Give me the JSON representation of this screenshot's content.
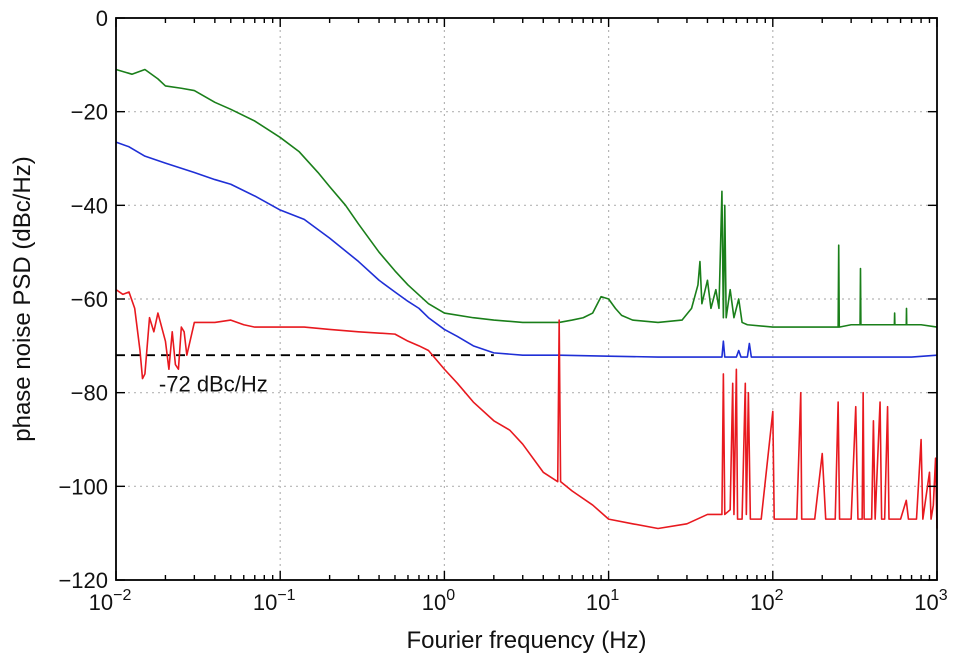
{
  "chart_data": {
    "type": "line",
    "xscale": "log",
    "xlabel": "Fourier frequency (Hz)",
    "ylabel": "phase noise PSD (dBc/Hz)",
    "xlim": [
      0.01,
      1000
    ],
    "ylim": [
      -120,
      0
    ],
    "grid": true,
    "x_ticks": [
      {
        "value": 0.01,
        "base": "10",
        "exp": "−2"
      },
      {
        "value": 0.1,
        "base": "10",
        "exp": "−1"
      },
      {
        "value": 1,
        "base": "10",
        "exp": "0"
      },
      {
        "value": 10,
        "base": "10",
        "exp": "1"
      },
      {
        "value": 100,
        "base": "10",
        "exp": "2"
      },
      {
        "value": 1000,
        "base": "10",
        "exp": "3"
      }
    ],
    "y_ticks": [
      {
        "value": 0,
        "label": "0"
      },
      {
        "value": -20,
        "label": "−20"
      },
      {
        "value": -40,
        "label": "−40"
      },
      {
        "value": -60,
        "label": "−60"
      },
      {
        "value": -80,
        "label": "−80"
      },
      {
        "value": -100,
        "label": "−100"
      },
      {
        "value": -120,
        "label": "−120"
      }
    ],
    "reference_line": {
      "y": -72,
      "x_range": [
        0.01,
        2.0
      ],
      "style": "dashed",
      "color": "#000000"
    },
    "annotations": [
      {
        "text": "-72 dBc/Hz",
        "x": 0.015,
        "y": -78
      }
    ],
    "series": [
      {
        "color": "#1a7f1a",
        "points": [
          [
            0.01,
            -11
          ],
          [
            0.0125,
            -12
          ],
          [
            0.015,
            -11
          ],
          [
            0.018,
            -13
          ],
          [
            0.02,
            -14.5
          ],
          [
            0.025,
            -15
          ],
          [
            0.03,
            -15.5
          ],
          [
            0.04,
            -18
          ],
          [
            0.05,
            -19.5
          ],
          [
            0.07,
            -22
          ],
          [
            0.1,
            -25.5
          ],
          [
            0.13,
            -28.5
          ],
          [
            0.17,
            -33
          ],
          [
            0.2,
            -36
          ],
          [
            0.25,
            -40
          ],
          [
            0.3,
            -44
          ],
          [
            0.4,
            -50
          ],
          [
            0.5,
            -54
          ],
          [
            0.6,
            -57
          ],
          [
            0.8,
            -61
          ],
          [
            1,
            -63
          ],
          [
            1.5,
            -64
          ],
          [
            2,
            -64.5
          ],
          [
            3,
            -65
          ],
          [
            4,
            -65
          ],
          [
            5,
            -65
          ],
          [
            6,
            -64.5
          ],
          [
            7,
            -64
          ],
          [
            8,
            -63
          ],
          [
            9,
            -59.5
          ],
          [
            10,
            -60
          ],
          [
            11,
            -62
          ],
          [
            12,
            -63.5
          ],
          [
            14,
            -64.5
          ],
          [
            20,
            -65
          ],
          [
            28,
            -64.5
          ],
          [
            32,
            -62
          ],
          [
            35,
            -57
          ],
          [
            36,
            -52
          ],
          [
            37,
            -61
          ],
          [
            40,
            -56
          ],
          [
            42,
            -62
          ],
          [
            45,
            -58
          ],
          [
            47,
            -62
          ],
          [
            49,
            -37
          ],
          [
            50,
            -64
          ],
          [
            51,
            -40
          ],
          [
            52,
            -64
          ],
          [
            55,
            -58
          ],
          [
            58,
            -64
          ],
          [
            62,
            -60
          ],
          [
            65,
            -65
          ],
          [
            70,
            -65.5
          ],
          [
            100,
            -66
          ],
          [
            200,
            -66
          ],
          [
            250,
            -66
          ],
          [
            252,
            -48.5
          ],
          [
            254,
            -66
          ],
          [
            300,
            -65.5
          ],
          [
            340,
            -65.5
          ],
          [
            342,
            -53.5
          ],
          [
            344,
            -65.5
          ],
          [
            400,
            -65.5
          ],
          [
            500,
            -65.5
          ],
          [
            550,
            -65.5
          ],
          [
            552,
            -63
          ],
          [
            554,
            -65.5
          ],
          [
            650,
            -65.5
          ],
          [
            652,
            -62
          ],
          [
            654,
            -65.5
          ],
          [
            800,
            -65.5
          ],
          [
            1000,
            -66
          ]
        ]
      },
      {
        "color": "#1f2fd6",
        "points": [
          [
            0.01,
            -26.5
          ],
          [
            0.012,
            -27.5
          ],
          [
            0.015,
            -29.5
          ],
          [
            0.02,
            -31
          ],
          [
            0.03,
            -33
          ],
          [
            0.04,
            -34.5
          ],
          [
            0.05,
            -35.5
          ],
          [
            0.07,
            -38
          ],
          [
            0.1,
            -41
          ],
          [
            0.14,
            -43
          ],
          [
            0.2,
            -47
          ],
          [
            0.3,
            -52
          ],
          [
            0.4,
            -56
          ],
          [
            0.5,
            -58.5
          ],
          [
            0.6,
            -60.5
          ],
          [
            0.7,
            -62
          ],
          [
            0.8,
            -64
          ],
          [
            1,
            -66.5
          ],
          [
            1.2,
            -68
          ],
          [
            1.5,
            -70
          ],
          [
            2,
            -71.5
          ],
          [
            3,
            -72
          ],
          [
            5,
            -72
          ],
          [
            10,
            -72.2
          ],
          [
            20,
            -72.4
          ],
          [
            30,
            -72.4
          ],
          [
            49,
            -72.4
          ],
          [
            50,
            -69
          ],
          [
            51,
            -72.4
          ],
          [
            60,
            -72.4
          ],
          [
            62,
            -71
          ],
          [
            64,
            -72.4
          ],
          [
            70,
            -72.4
          ],
          [
            72,
            -69.5
          ],
          [
            74,
            -72.4
          ],
          [
            100,
            -72.4
          ],
          [
            300,
            -72.4
          ],
          [
            500,
            -72.4
          ],
          [
            700,
            -72.4
          ],
          [
            1000,
            -72
          ]
        ]
      },
      {
        "color": "#e8191f",
        "points": [
          [
            0.01,
            -58
          ],
          [
            0.011,
            -59
          ],
          [
            0.012,
            -58.5
          ],
          [
            0.013,
            -62
          ],
          [
            0.014,
            -71
          ],
          [
            0.0145,
            -77
          ],
          [
            0.015,
            -76
          ],
          [
            0.016,
            -64
          ],
          [
            0.017,
            -67
          ],
          [
            0.018,
            -63
          ],
          [
            0.02,
            -69
          ],
          [
            0.021,
            -75
          ],
          [
            0.022,
            -67
          ],
          [
            0.023,
            -74
          ],
          [
            0.024,
            -75
          ],
          [
            0.025,
            -66
          ],
          [
            0.026,
            -67
          ],
          [
            0.027,
            -72
          ],
          [
            0.03,
            -65
          ],
          [
            0.04,
            -65
          ],
          [
            0.05,
            -64.5
          ],
          [
            0.06,
            -65.5
          ],
          [
            0.07,
            -66
          ],
          [
            0.1,
            -66
          ],
          [
            0.14,
            -66
          ],
          [
            0.2,
            -66.5
          ],
          [
            0.3,
            -67
          ],
          [
            0.5,
            -67.5
          ],
          [
            0.6,
            -69
          ],
          [
            0.7,
            -70
          ],
          [
            0.8,
            -71
          ],
          [
            1,
            -75
          ],
          [
            1.2,
            -78
          ],
          [
            1.5,
            -82
          ],
          [
            2,
            -86
          ],
          [
            2.5,
            -88
          ],
          [
            3,
            -91
          ],
          [
            4,
            -97
          ],
          [
            4.9,
            -99
          ],
          [
            5,
            -64.5
          ],
          [
            5.1,
            -99
          ],
          [
            6,
            -101
          ],
          [
            8,
            -104
          ],
          [
            10,
            -107
          ],
          [
            14,
            -108
          ],
          [
            20,
            -109
          ],
          [
            30,
            -108
          ],
          [
            40,
            -106
          ],
          [
            49,
            -106
          ],
          [
            50,
            -76
          ],
          [
            51,
            -106
          ],
          [
            55,
            -105
          ],
          [
            57,
            -78
          ],
          [
            58,
            -106
          ],
          [
            60,
            -75
          ],
          [
            61,
            -107
          ],
          [
            65,
            -107
          ],
          [
            68,
            -78
          ],
          [
            69,
            -106
          ],
          [
            71,
            -80
          ],
          [
            73,
            -107
          ],
          [
            85,
            -107
          ],
          [
            100,
            -84
          ],
          [
            102,
            -107
          ],
          [
            140,
            -107
          ],
          [
            148,
            -80
          ],
          [
            150,
            -107
          ],
          [
            180,
            -107
          ],
          [
            200,
            -93
          ],
          [
            210,
            -107
          ],
          [
            240,
            -107
          ],
          [
            250,
            -82
          ],
          [
            255,
            -107
          ],
          [
            300,
            -107
          ],
          [
            320,
            -83
          ],
          [
            330,
            -107
          ],
          [
            350,
            -107
          ],
          [
            355,
            -80
          ],
          [
            360,
            -107
          ],
          [
            400,
            -107
          ],
          [
            410,
            -86
          ],
          [
            420,
            -107
          ],
          [
            450,
            -82
          ],
          [
            460,
            -107
          ],
          [
            480,
            -107
          ],
          [
            500,
            -83
          ],
          [
            510,
            -107
          ],
          [
            600,
            -107
          ],
          [
            650,
            -103
          ],
          [
            670,
            -107
          ],
          [
            750,
            -107
          ],
          [
            800,
            -90
          ],
          [
            820,
            -107
          ],
          [
            900,
            -97
          ],
          [
            920,
            -107
          ],
          [
            950,
            -104
          ],
          [
            980,
            -94
          ],
          [
            1000,
            -109
          ]
        ]
      }
    ]
  }
}
